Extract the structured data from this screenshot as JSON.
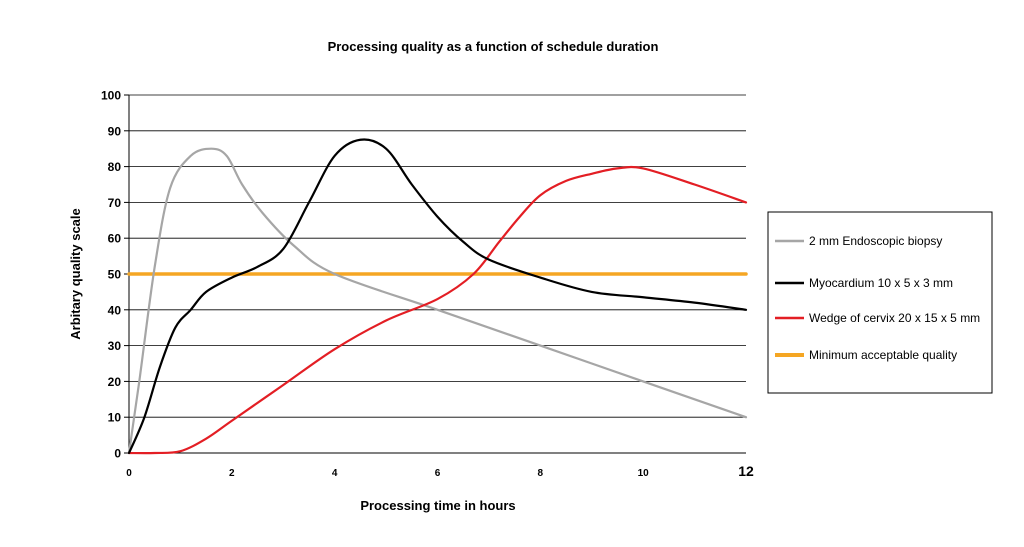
{
  "chart_data": {
    "type": "line",
    "title": "Processing quality as a function of schedule duration",
    "xlabel": "Processing time in hours",
    "ylabel": "Arbitary quality scale",
    "xlim": [
      0,
      12
    ],
    "ylim": [
      0,
      100
    ],
    "x_ticks": [
      "0",
      "2",
      "4",
      "6",
      "8",
      "10",
      "12"
    ],
    "y_ticks": [
      "0",
      "10",
      "20",
      "30",
      "40",
      "50",
      "60",
      "70",
      "80",
      "90",
      "100"
    ],
    "grid": "horizontal",
    "legend_position": "right",
    "series": [
      {
        "name": "2 mm Endoscopic biopsy",
        "color": "#a6a6a6",
        "points": [
          [
            0,
            0
          ],
          [
            0.2,
            20
          ],
          [
            0.5,
            52
          ],
          [
            0.8,
            74
          ],
          [
            1.2,
            83
          ],
          [
            1.6,
            85
          ],
          [
            1.9,
            83
          ],
          [
            2.2,
            75
          ],
          [
            2.6,
            67
          ],
          [
            3.2,
            58
          ],
          [
            4,
            50
          ],
          [
            6,
            40
          ],
          [
            8,
            30
          ],
          [
            10,
            20
          ],
          [
            12,
            10
          ]
        ]
      },
      {
        "name": "Myocardium 10 x 5 x 3 mm",
        "color": "#000000",
        "points": [
          [
            0,
            0
          ],
          [
            0.3,
            10
          ],
          [
            0.6,
            24
          ],
          [
            0.9,
            35
          ],
          [
            1.2,
            40
          ],
          [
            1.5,
            45
          ],
          [
            2,
            49
          ],
          [
            2.5,
            52
          ],
          [
            3,
            57
          ],
          [
            3.5,
            70
          ],
          [
            4,
            83
          ],
          [
            4.5,
            87.5
          ],
          [
            5,
            85
          ],
          [
            5.5,
            75
          ],
          [
            6,
            66
          ],
          [
            6.5,
            59
          ],
          [
            7,
            54
          ],
          [
            8,
            49
          ],
          [
            9,
            45
          ],
          [
            10,
            43.5
          ],
          [
            11,
            42
          ],
          [
            12,
            40
          ]
        ]
      },
      {
        "name": "Wedge of cervix 20 x 15 x 5 mm",
        "color": "#e31e24",
        "points": [
          [
            0,
            0
          ],
          [
            0.5,
            0
          ],
          [
            1,
            0.5
          ],
          [
            1.5,
            4
          ],
          [
            2,
            9
          ],
          [
            3,
            19
          ],
          [
            4,
            29
          ],
          [
            5,
            37
          ],
          [
            6,
            43
          ],
          [
            6.7,
            50
          ],
          [
            7.2,
            59
          ],
          [
            7.6,
            66
          ],
          [
            8,
            72
          ],
          [
            8.5,
            76
          ],
          [
            9,
            78
          ],
          [
            9.5,
            79.5
          ],
          [
            10,
            79.5
          ],
          [
            11,
            75
          ],
          [
            12,
            70
          ]
        ]
      },
      {
        "name": "Minimum acceptable quality",
        "color": "#f5a623",
        "points": [
          [
            0,
            50
          ],
          [
            12,
            50
          ]
        ]
      }
    ]
  }
}
